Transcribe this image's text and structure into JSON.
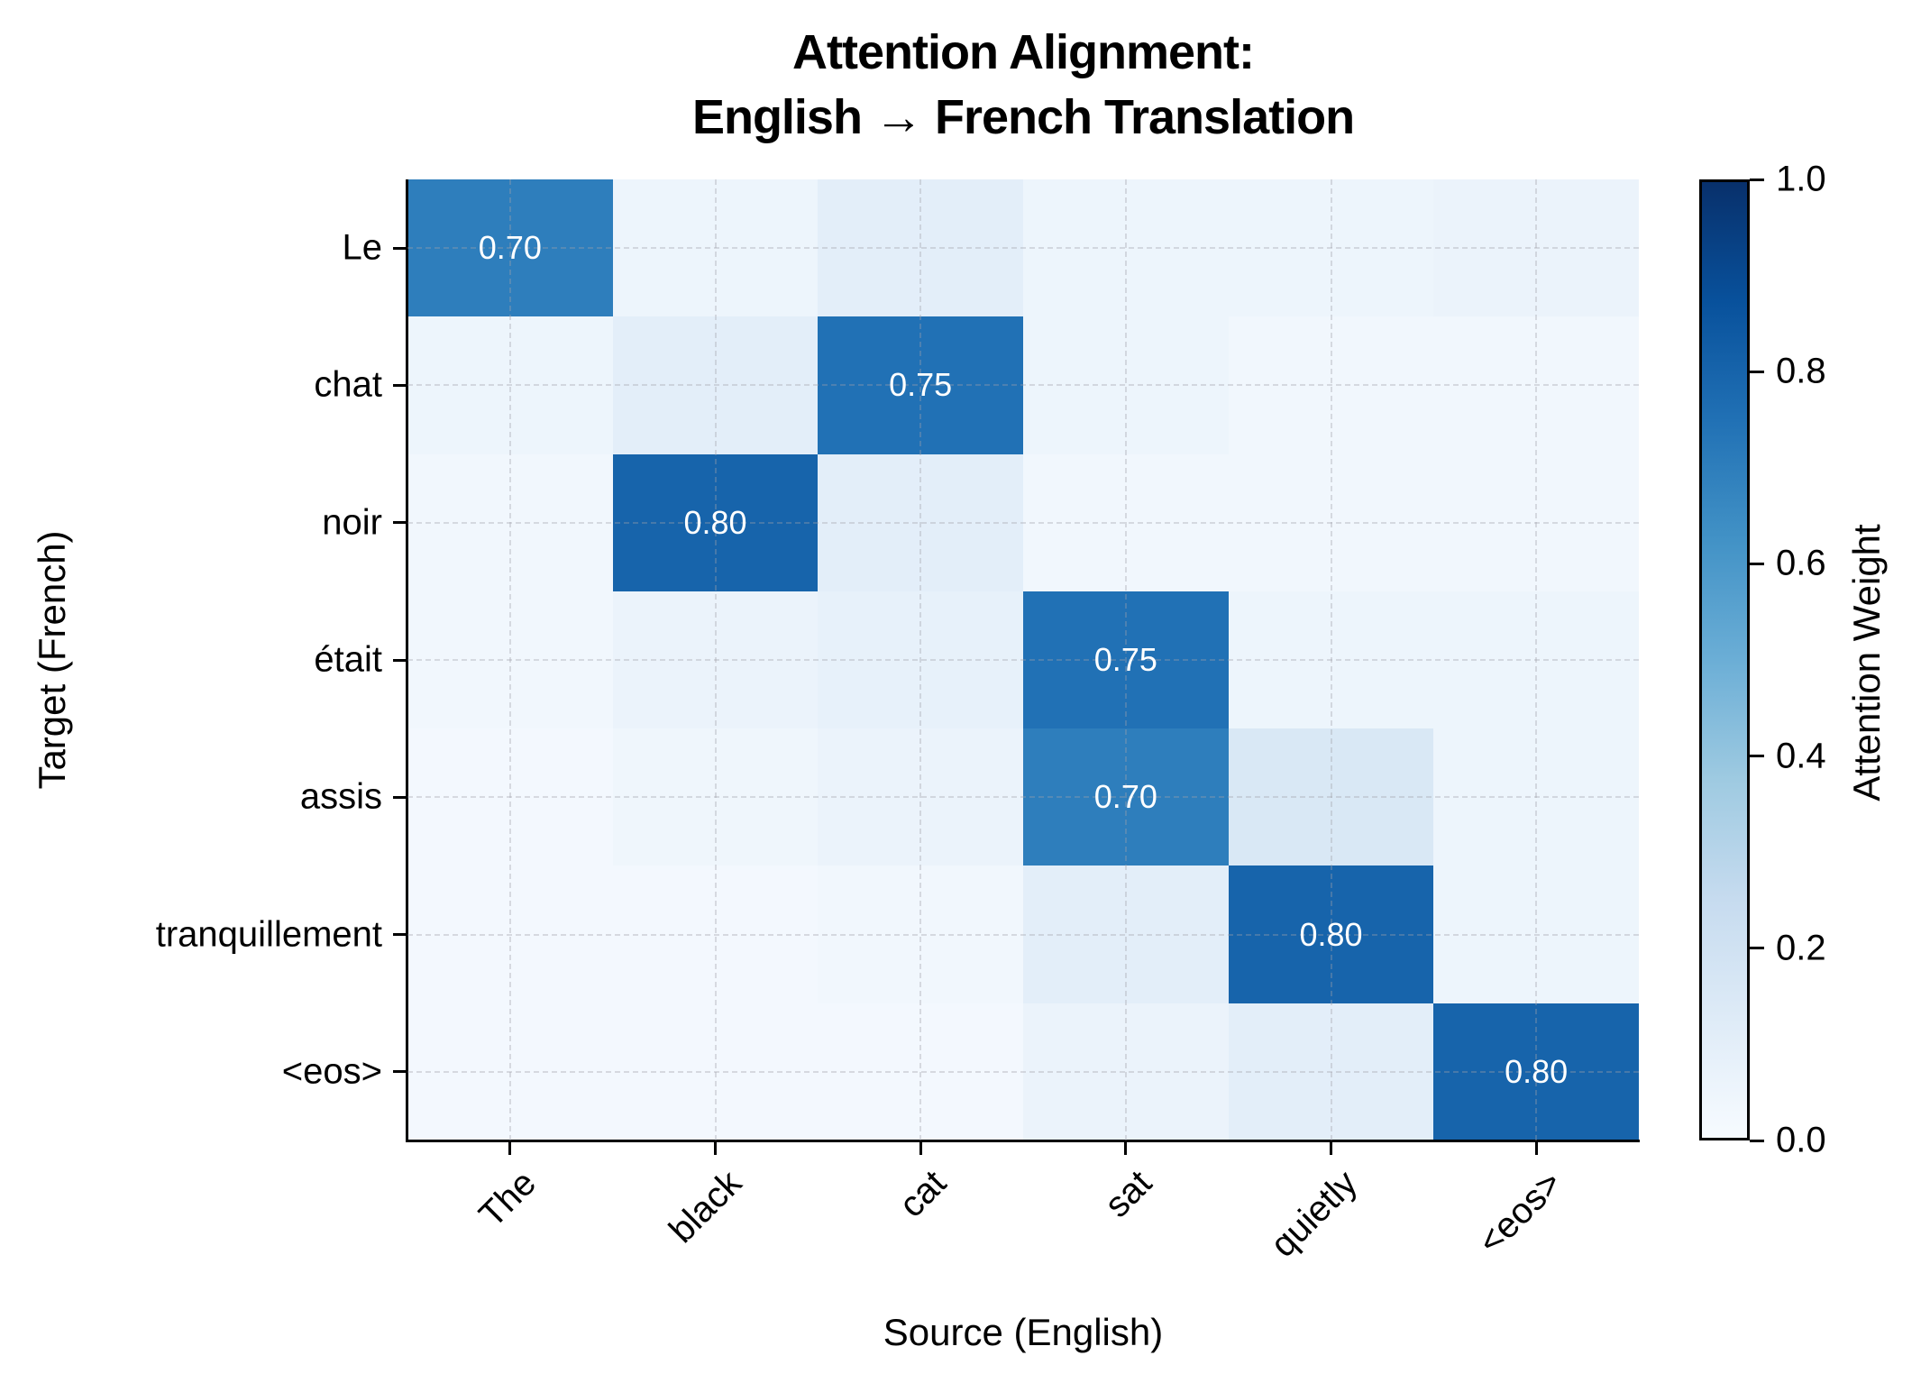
{
  "title": {
    "line1": "Attention Alignment:",
    "line2": "English → French Translation"
  },
  "axes": {
    "xlabel": "Source (English)",
    "ylabel": "Target (French)",
    "colorbar_label": "Attention Weight",
    "colorbar_ticks": [
      "0.0",
      "0.2",
      "0.4",
      "0.6",
      "0.8",
      "1.0"
    ]
  },
  "colors": {
    "colormap": "Blues",
    "annotation_text": "#ffffff",
    "grid": "#c8c8d0"
  },
  "chart_data": {
    "type": "heatmap",
    "title": "Attention Alignment: English → French Translation",
    "xlabel": "Source (English)",
    "ylabel": "Target (French)",
    "x_categories": [
      "The",
      "black",
      "cat",
      "sat",
      "quietly",
      "<eos>"
    ],
    "y_categories": [
      "Le",
      "chat",
      "noir",
      "était",
      "assis",
      "tranquillement",
      "<eos>"
    ],
    "values": [
      [
        0.7,
        0.05,
        0.1,
        0.05,
        0.05,
        0.06
      ],
      [
        0.05,
        0.1,
        0.75,
        0.05,
        0.03,
        0.03
      ],
      [
        0.03,
        0.8,
        0.1,
        0.03,
        0.03,
        0.03
      ],
      [
        0.03,
        0.06,
        0.08,
        0.75,
        0.05,
        0.05
      ],
      [
        0.02,
        0.04,
        0.06,
        0.7,
        0.15,
        0.05
      ],
      [
        0.02,
        0.02,
        0.03,
        0.1,
        0.8,
        0.05
      ],
      [
        0.02,
        0.02,
        0.02,
        0.06,
        0.1,
        0.8
      ]
    ],
    "annotations": [
      {
        "row": 0,
        "col": 0,
        "text": "0.70"
      },
      {
        "row": 1,
        "col": 2,
        "text": "0.75"
      },
      {
        "row": 2,
        "col": 1,
        "text": "0.80"
      },
      {
        "row": 3,
        "col": 3,
        "text": "0.75"
      },
      {
        "row": 4,
        "col": 3,
        "text": "0.70"
      },
      {
        "row": 5,
        "col": 4,
        "text": "0.80"
      },
      {
        "row": 6,
        "col": 5,
        "text": "0.80"
      }
    ],
    "colorbar": {
      "label": "Attention Weight",
      "range": [
        0.0,
        1.0
      ],
      "ticks": [
        0.0,
        0.2,
        0.4,
        0.6,
        0.8,
        1.0
      ]
    },
    "vmin": 0.0,
    "vmax": 1.0,
    "grid": true
  }
}
